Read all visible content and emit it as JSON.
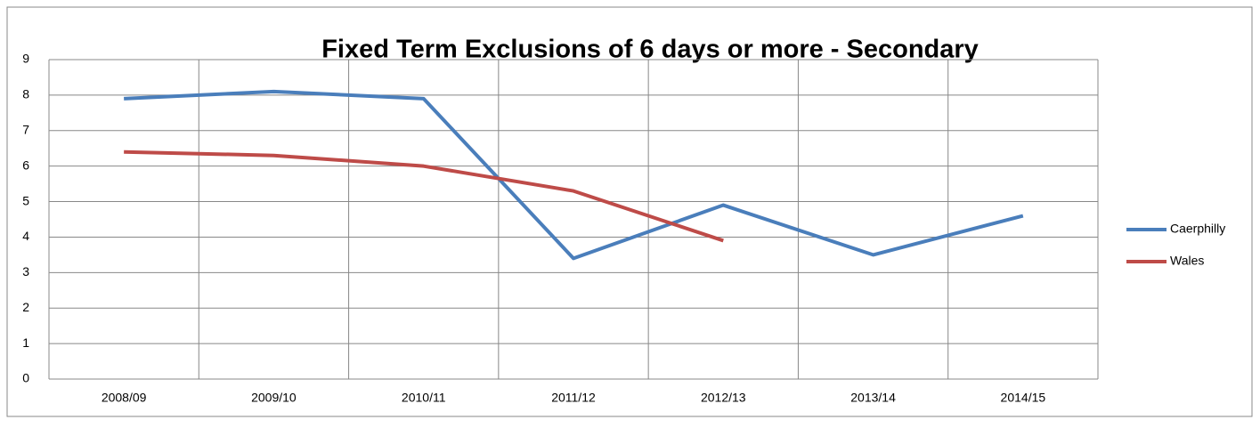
{
  "chart_data": {
    "type": "line",
    "title": "Fixed Term Exclusions of 6 days or more - Secondary",
    "categories": [
      "2008/09",
      "2009/10",
      "2010/11",
      "2011/12",
      "2012/13",
      "2013/14",
      "2014/15"
    ],
    "series": [
      {
        "name": "Caerphilly",
        "color": "#4a7ebb",
        "values": [
          7.9,
          8.1,
          7.9,
          3.4,
          4.9,
          3.5,
          4.6
        ]
      },
      {
        "name": "Wales",
        "color": "#be4b48",
        "values": [
          6.4,
          6.3,
          6.0,
          5.3,
          3.9,
          null,
          null
        ]
      }
    ],
    "ylim": [
      0,
      9
    ],
    "yticks": [
      0,
      1,
      2,
      3,
      4,
      5,
      6,
      7,
      8,
      9
    ],
    "grid": true,
    "legend": "right"
  }
}
